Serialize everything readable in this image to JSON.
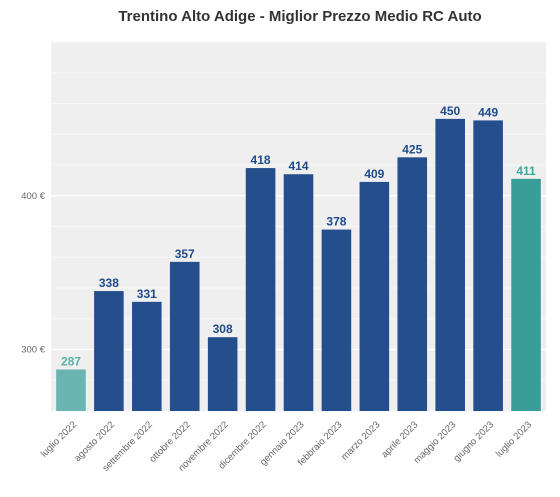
{
  "chart_data": {
    "type": "bar",
    "title": "Trentino Alto Adige - Miglior Prezzo Medio RC Auto",
    "categories": [
      "luglio 2022",
      "agosto 2022",
      "settembre 2022",
      "ottobre 2022",
      "novembre 2022",
      "dicembre 2022",
      "gennaio 2023",
      "febbraio 2023",
      "marzo 2023",
      "aprile 2023",
      "maggio 2023",
      "giugno 2023",
      "luglio 2023"
    ],
    "values": [
      287,
      338,
      331,
      357,
      308,
      418,
      414,
      378,
      409,
      425,
      450,
      449,
      411
    ],
    "data_labels": [
      "287",
      "338",
      "331",
      "357",
      "308",
      "418",
      "414",
      "378",
      "409",
      "425",
      "450",
      "449",
      "411"
    ],
    "ylim": [
      260,
      500
    ],
    "y_ticks": [
      300,
      400
    ],
    "y_tick_labels": [
      "300 €",
      "400 €"
    ],
    "grid": true,
    "colors": {
      "first_bar": "#6ab5b1",
      "middle_bars": "#254e8c",
      "last_bar": "#3a9e98",
      "first_label": "#5ab0aa",
      "middle_label": "#1f4a8c",
      "last_label": "#3aa6a0",
      "plot_background": "#efefef",
      "grid": "#ffffff"
    }
  }
}
